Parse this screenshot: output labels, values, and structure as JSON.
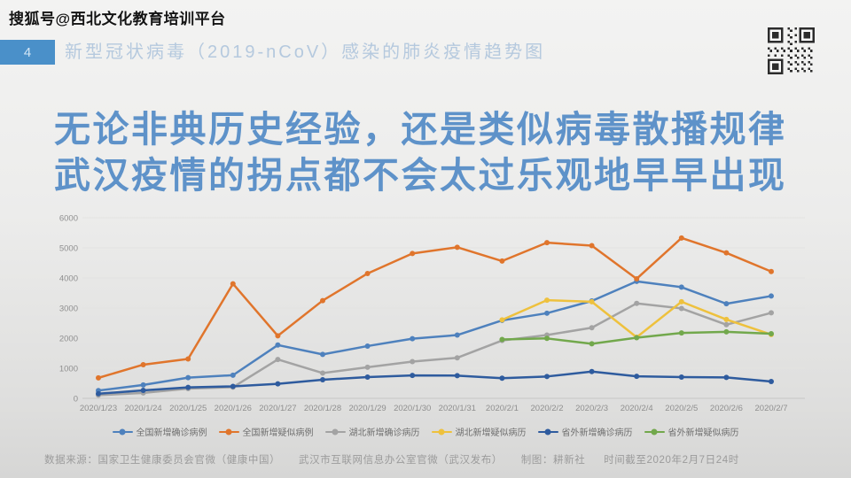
{
  "watermark": "搜狐号@西北文化教育培训平台",
  "header": {
    "page_number": "4",
    "title": "新型冠状病毒（2019-nCoV）感染的肺炎疫情趋势图",
    "badge_color": "#4a90c9",
    "title_color": "#b5c9de"
  },
  "icons": {
    "qr_code": "qr-code"
  },
  "headline": {
    "line1": "无论非典历史经验，还是类似病毒散播规律",
    "line2": "武汉疫情的拐点都不会太过乐观地早早出现",
    "color": "#5e92c9"
  },
  "chart_data": {
    "type": "line",
    "title": "",
    "xlabel": "",
    "ylabel": "",
    "ylim": [
      0,
      6000
    ],
    "ytick_step": 1000,
    "grid": "horizontal",
    "legend_position": "bottom",
    "x": [
      "2020/1/23",
      "2020/1/24",
      "2020/1/25",
      "2020/1/26",
      "2020/1/27",
      "2020/1/28",
      "2020/1/29",
      "2020/1/30",
      "2020/1/31",
      "2020/2/1",
      "2020/2/2",
      "2020/2/3",
      "2020/2/4",
      "2020/2/5",
      "2020/2/6",
      "2020/2/7"
    ],
    "series": [
      {
        "name": "全国新增确诊病例",
        "color": "#4e81bd",
        "values": [
          259,
          444,
          688,
          769,
          1771,
          1459,
          1737,
          1982,
          2102,
          2590,
          2829,
          3235,
          3887,
          3694,
          3143,
          3399
        ]
      },
      {
        "name": "全国新增疑似病例",
        "color": "#e0752c",
        "values": [
          680,
          1118,
          1309,
          3806,
          2077,
          3248,
          4148,
          4812,
          5019,
          4562,
          5173,
          5072,
          3971,
          5328,
          4833,
          4214
        ]
      },
      {
        "name": "湖北新增确诊病历",
        "color": "#a3a3a3",
        "values": [
          105,
          180,
          323,
          371,
          1291,
          840,
          1032,
          1220,
          1347,
          1921,
          2103,
          2345,
          3156,
          2987,
          2447,
          2841
        ]
      },
      {
        "name": "湖北新增疑似病历",
        "color": "#eec13d",
        "values": [
          null,
          null,
          null,
          null,
          null,
          null,
          null,
          null,
          null,
          2606,
          3260,
          3210,
          2030,
          3210,
          2620,
          2120
        ]
      },
      {
        "name": "省外新增确诊病历",
        "color": "#2e5b9e",
        "values": [
          154,
          264,
          365,
          398,
          480,
          619,
          705,
          762,
          755,
          669,
          726,
          890,
          731,
          707,
          696,
          558
        ]
      },
      {
        "name": "省外新增疑似病历",
        "color": "#72a84c",
        "values": [
          null,
          null,
          null,
          null,
          null,
          null,
          null,
          null,
          null,
          1956,
          1991,
          1812,
          2014,
          2172,
          2211,
          2147
        ]
      }
    ]
  },
  "footer": {
    "source": "数据来源：国家卫生健康委员会官微（健康中国）",
    "source2": "武汉市互联网信息办公室官微（武汉发布）",
    "credit": "制图：耕新社",
    "deadline": "时间截至2020年2月7日24时"
  }
}
